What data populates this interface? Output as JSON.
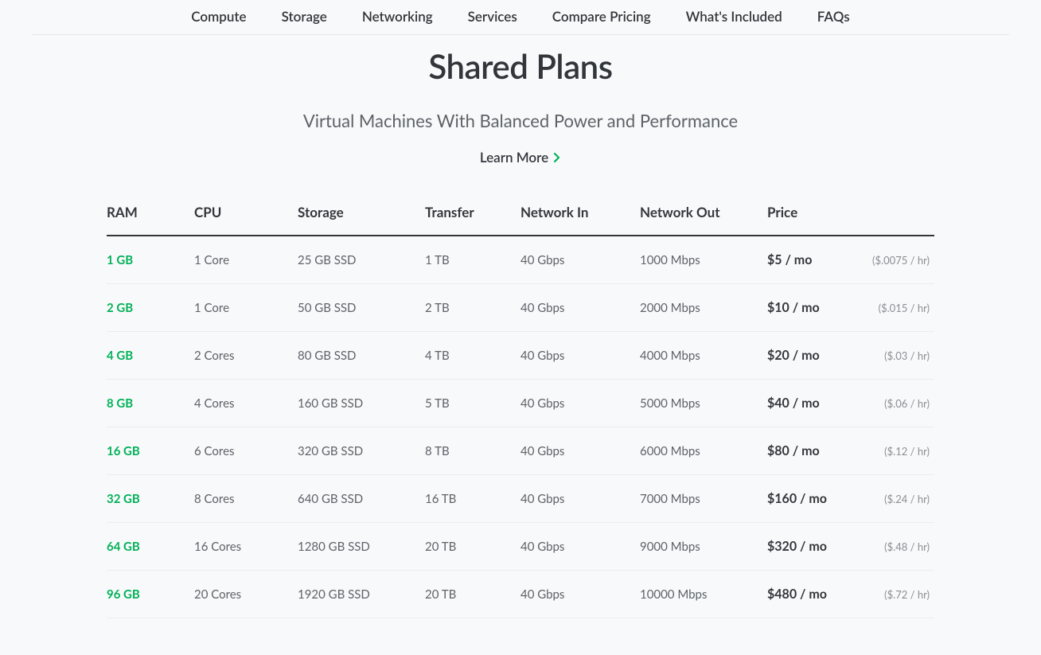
{
  "nav": {
    "items": [
      {
        "label": "Compute"
      },
      {
        "label": "Storage"
      },
      {
        "label": "Networking"
      },
      {
        "label": "Services"
      },
      {
        "label": "Compare Pricing"
      },
      {
        "label": "What's Included"
      },
      {
        "label": "FAQs"
      }
    ]
  },
  "hero": {
    "title": "Shared Plans",
    "subtitle": "Virtual Machines With Balanced Power and Performance",
    "learn_more": "Learn More"
  },
  "table": {
    "columns": [
      "RAM",
      "CPU",
      "Storage",
      "Transfer",
      "Network In",
      "Network Out",
      "Price"
    ],
    "rows": [
      {
        "ram": "1 GB",
        "cpu": "1 Core",
        "storage": "25 GB SSD",
        "transfer": "1 TB",
        "net_in": "40 Gbps",
        "net_out": "1000 Mbps",
        "price": "$5 / mo",
        "hourly": "($.0075 / hr)"
      },
      {
        "ram": "2 GB",
        "cpu": "1 Core",
        "storage": "50 GB SSD",
        "transfer": "2 TB",
        "net_in": "40 Gbps",
        "net_out": "2000 Mbps",
        "price": "$10 / mo",
        "hourly": "($.015 / hr)"
      },
      {
        "ram": "4 GB",
        "cpu": "2 Cores",
        "storage": "80 GB SSD",
        "transfer": "4 TB",
        "net_in": "40 Gbps",
        "net_out": "4000 Mbps",
        "price": "$20 / mo",
        "hourly": "($.03 / hr)"
      },
      {
        "ram": "8 GB",
        "cpu": "4 Cores",
        "storage": "160 GB SSD",
        "transfer": "5 TB",
        "net_in": "40 Gbps",
        "net_out": "5000 Mbps",
        "price": "$40 / mo",
        "hourly": "($.06 / hr)"
      },
      {
        "ram": "16 GB",
        "cpu": "6 Cores",
        "storage": "320 GB SSD",
        "transfer": "8 TB",
        "net_in": "40 Gbps",
        "net_out": "6000 Mbps",
        "price": "$80 / mo",
        "hourly": "($.12 / hr)"
      },
      {
        "ram": "32 GB",
        "cpu": "8 Cores",
        "storage": "640 GB SSD",
        "transfer": "16 TB",
        "net_in": "40 Gbps",
        "net_out": "7000 Mbps",
        "price": "$160 / mo",
        "hourly": "($.24 / hr)"
      },
      {
        "ram": "64 GB",
        "cpu": "16 Cores",
        "storage": "1280 GB SSD",
        "transfer": "20 TB",
        "net_in": "40 Gbps",
        "net_out": "9000 Mbps",
        "price": "$320 / mo",
        "hourly": "($.48 / hr)"
      },
      {
        "ram": "96 GB",
        "cpu": "20 Cores",
        "storage": "1920 GB SSD",
        "transfer": "20 TB",
        "net_in": "40 Gbps",
        "net_out": "10000 Mbps",
        "price": "$480 / mo",
        "hourly": "($.72 / hr)"
      }
    ],
    "styling": {
      "ram_color": "#02b159",
      "header_border_color": "#32363b",
      "row_border_color": "#ececec",
      "body_text_color": "#5e6369",
      "price_color": "#32363b",
      "hourly_color": "#8a8f95",
      "background_color": "#f8f9fa",
      "header_font_size": 17,
      "body_font_size": 15,
      "hourly_font_size": 13
    }
  }
}
